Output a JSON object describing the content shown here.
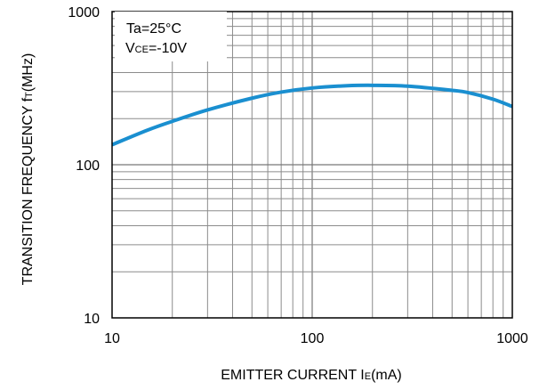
{
  "chart_data": {
    "type": "line",
    "xscale": "log",
    "yscale": "log",
    "xlim": [
      10,
      1000
    ],
    "ylim": [
      10,
      1000
    ],
    "grid": true,
    "ylabel": {
      "main": "TRANSITION FREQUENCY  f",
      "sub": "T",
      "unit": "(MHz)"
    },
    "xlabel": {
      "main": "EMITTER CURRENT  I",
      "sub": "E",
      "unit": "(mA)"
    },
    "x_ticks": [
      {
        "value": 10,
        "label": "10"
      },
      {
        "value": 100,
        "label": "100"
      },
      {
        "value": 1000,
        "label": "1000"
      }
    ],
    "y_ticks": [
      {
        "value": 10,
        "label": "10"
      },
      {
        "value": 100,
        "label": "100"
      },
      {
        "value": 1000,
        "label": "1000"
      }
    ],
    "annotations": [
      {
        "main": "Ta=25°C"
      },
      {
        "main": "V",
        "sub": "CE",
        "rest": "=-10V"
      }
    ],
    "series": [
      {
        "color": "#1a8fd0",
        "x": [
          10,
          15,
          20,
          30,
          50,
          70,
          100,
          150,
          200,
          300,
          500,
          600,
          800,
          1000
        ],
        "y": [
          135,
          168,
          192,
          228,
          272,
          298,
          317,
          328,
          330,
          326,
          306,
          296,
          268,
          240
        ]
      }
    ]
  }
}
